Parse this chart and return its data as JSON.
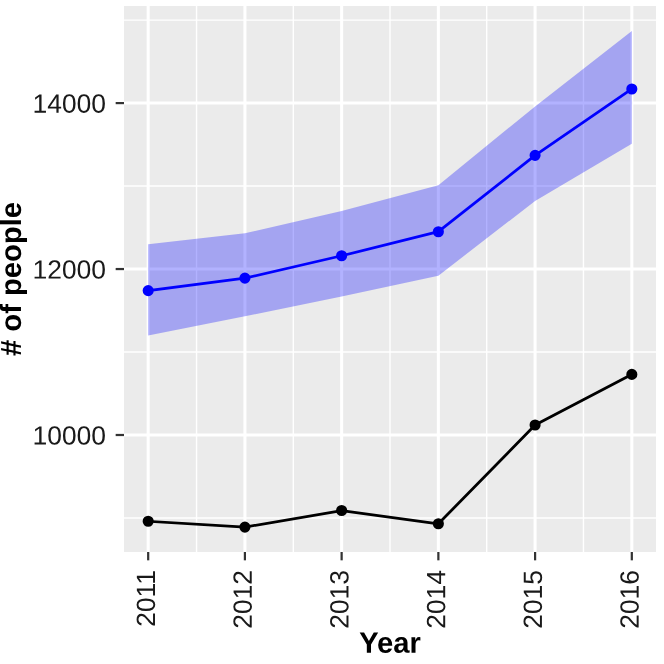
{
  "chart_data": {
    "type": "line",
    "xlabel": "Year",
    "ylabel": "# of people",
    "x": [
      2011,
      2012,
      2013,
      2014,
      2015,
      2016
    ],
    "series": [
      {
        "color": "#0000ff",
        "values": [
          11740,
          11890,
          12160,
          12450,
          13370,
          14170
        ],
        "lower": [
          11200,
          11430,
          11670,
          11920,
          12820,
          13510
        ],
        "upper": [
          12300,
          12430,
          12700,
          13010,
          13960,
          14870
        ]
      },
      {
        "color": "#000000",
        "values": [
          8960,
          8890,
          9090,
          8930,
          10120,
          10730
        ]
      }
    ],
    "xlim": [
      2010.75,
      2016.25
    ],
    "xticks": [
      2011,
      2012,
      2013,
      2014,
      2015,
      2016
    ],
    "ylim": [
      8590,
      15170
    ],
    "yticks": [
      10000,
      12000,
      14000
    ],
    "grid": true,
    "marker": "circle",
    "line_style": "solid"
  }
}
